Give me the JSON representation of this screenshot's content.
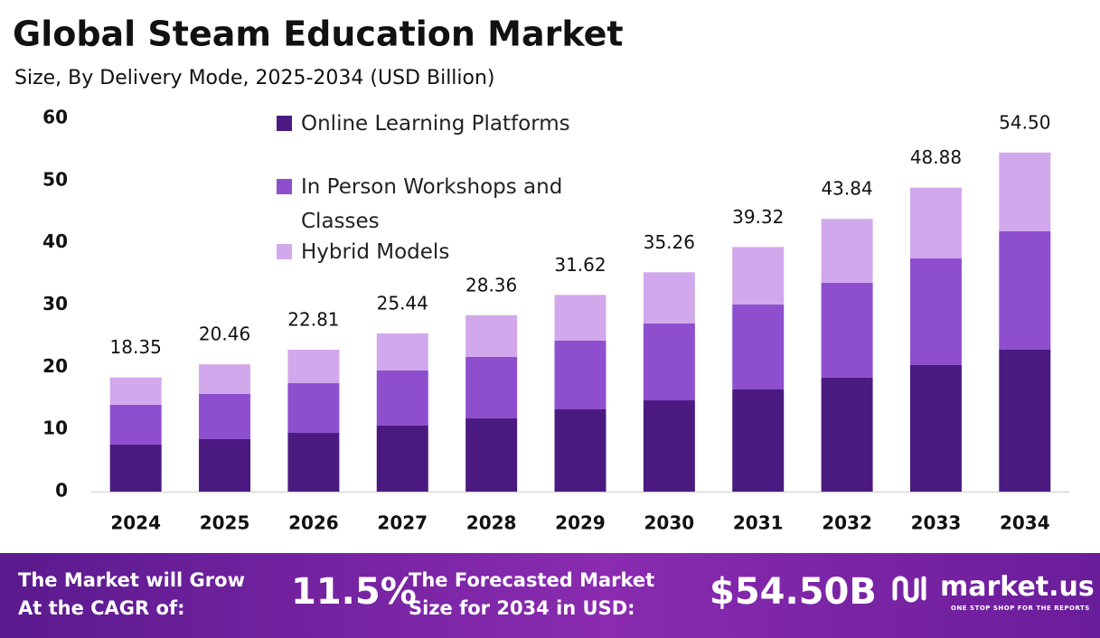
{
  "chart_data": {
    "type": "stacked-bar",
    "title": "Global Steam Education Market",
    "subtitle": "Size, By Delivery Mode, 2025-2034 (USD Billion)",
    "categories": [
      "2024",
      "2025",
      "2026",
      "2027",
      "2028",
      "2029",
      "2030",
      "2031",
      "2032",
      "2033",
      "2034"
    ],
    "series": [
      {
        "name": "Online Learning Platforms",
        "color": "#4b1a80",
        "values": [
          7.55,
          8.43,
          9.44,
          10.61,
          11.77,
          13.22,
          14.67,
          16.42,
          18.31,
          20.34,
          22.81
        ]
      },
      {
        "name": "In Person Workshops and Classes",
        "color": "#8e4fcf",
        "values": [
          6.4,
          7.26,
          7.99,
          8.86,
          9.88,
          11.04,
          12.35,
          13.65,
          15.25,
          17.14,
          19.03
        ]
      },
      {
        "name": "Hybrid Models",
        "color": "#d2a8ec",
        "values": [
          4.4,
          4.77,
          5.38,
          5.97,
          6.71,
          7.36,
          8.24,
          9.25,
          10.28,
          11.4,
          12.66
        ]
      }
    ],
    "totals": [
      18.35,
      20.46,
      22.81,
      25.44,
      28.36,
      31.62,
      35.26,
      39.32,
      43.84,
      48.88,
      54.5
    ],
    "total_labels": [
      "18.35",
      "20.46",
      "22.81",
      "25.44",
      "28.36",
      "31.62",
      "35.26",
      "39.32",
      "43.84",
      "48.88",
      "54.50"
    ],
    "ylim": [
      0,
      60
    ],
    "yticks": [
      0,
      10,
      20,
      30,
      40,
      50,
      60
    ],
    "grid": false,
    "legend": "top"
  },
  "footer": {
    "cagr_label": [
      "The Market will Grow",
      "At the CAGR of:"
    ],
    "cagr": "11.5%",
    "forecast_label": [
      "The Forecasted Market",
      "Size for 2034 in USD:"
    ],
    "forecast": "$54.50B",
    "brand": "market.us",
    "tagline": "ONE STOP SHOP FOR THE REPORTS"
  }
}
